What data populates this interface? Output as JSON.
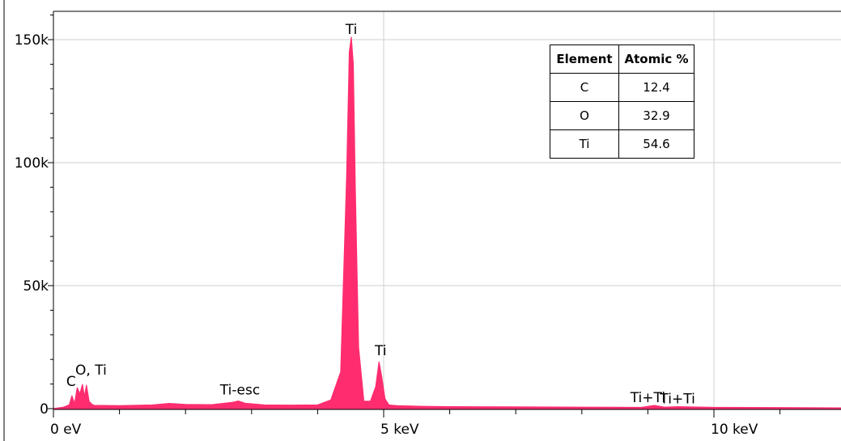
{
  "chart_data": {
    "type": "area",
    "title": "",
    "xlabel": "",
    "ylabel": "",
    "xlim": [
      0,
      12
    ],
    "ylim": [
      0,
      160000
    ],
    "x_ticks": [
      {
        "value": 0,
        "label": "0 eV"
      },
      {
        "value": 5,
        "label": "5 keV"
      },
      {
        "value": 10,
        "label": "10 keV"
      }
    ],
    "y_ticks": [
      {
        "value": 0,
        "label": "0"
      },
      {
        "value": 50000,
        "label": "50k"
      },
      {
        "value": 100000,
        "label": "100k"
      },
      {
        "value": 150000,
        "label": "150k"
      }
    ],
    "grid": true,
    "series_color": "#ff2d6f",
    "spectrum": {
      "x": [
        0.0,
        0.15,
        0.24,
        0.28,
        0.32,
        0.36,
        0.4,
        0.44,
        0.47,
        0.5,
        0.54,
        0.58,
        0.62,
        1.0,
        1.5,
        1.75,
        2.0,
        2.4,
        2.7,
        2.8,
        2.9,
        3.2,
        3.6,
        4.0,
        4.2,
        4.35,
        4.44,
        4.48,
        4.51,
        4.54,
        4.57,
        4.62,
        4.7,
        4.8,
        4.88,
        4.93,
        4.97,
        5.02,
        5.08,
        5.2,
        5.6,
        6.0,
        7.0,
        8.0,
        8.9,
        9.1,
        9.25,
        9.45,
        10.0,
        11.0,
        12.0
      ],
      "y": [
        0,
        600,
        1500,
        5200,
        2000,
        8500,
        6000,
        9800,
        4800,
        9500,
        3000,
        1800,
        1300,
        1200,
        1500,
        2100,
        1700,
        1600,
        2500,
        3100,
        2200,
        1500,
        1400,
        1500,
        3500,
        15000,
        95000,
        145000,
        151000,
        140000,
        90000,
        25000,
        3000,
        3000,
        9000,
        19000,
        13000,
        4000,
        1500,
        1200,
        900,
        800,
        700,
        600,
        500,
        1300,
        600,
        800,
        500,
        400,
        300
      ]
    },
    "peak_labels": [
      {
        "text": "C",
        "x": 0.28,
        "y": 5200
      },
      {
        "text": "O, Ti",
        "x": 0.52,
        "y": 9800
      },
      {
        "text": "Ti-esc",
        "x": 2.8,
        "y": 3100
      },
      {
        "text": "Ti",
        "x": 4.51,
        "y": 151000
      },
      {
        "text": "Ti",
        "x": 4.93,
        "y": 19000
      },
      {
        "text": "Ti+Ti",
        "x": 9.0,
        "y": 1300
      },
      {
        "text": "Ti+Ti",
        "x": 9.45,
        "y": 800
      }
    ]
  },
  "composition_table": {
    "headers": [
      "Element",
      "Atomic %"
    ],
    "rows": [
      {
        "element": "C",
        "atomic_pct": "12.4"
      },
      {
        "element": "O",
        "atomic_pct": "32.9"
      },
      {
        "element": "Ti",
        "atomic_pct": "54.6"
      }
    ]
  }
}
